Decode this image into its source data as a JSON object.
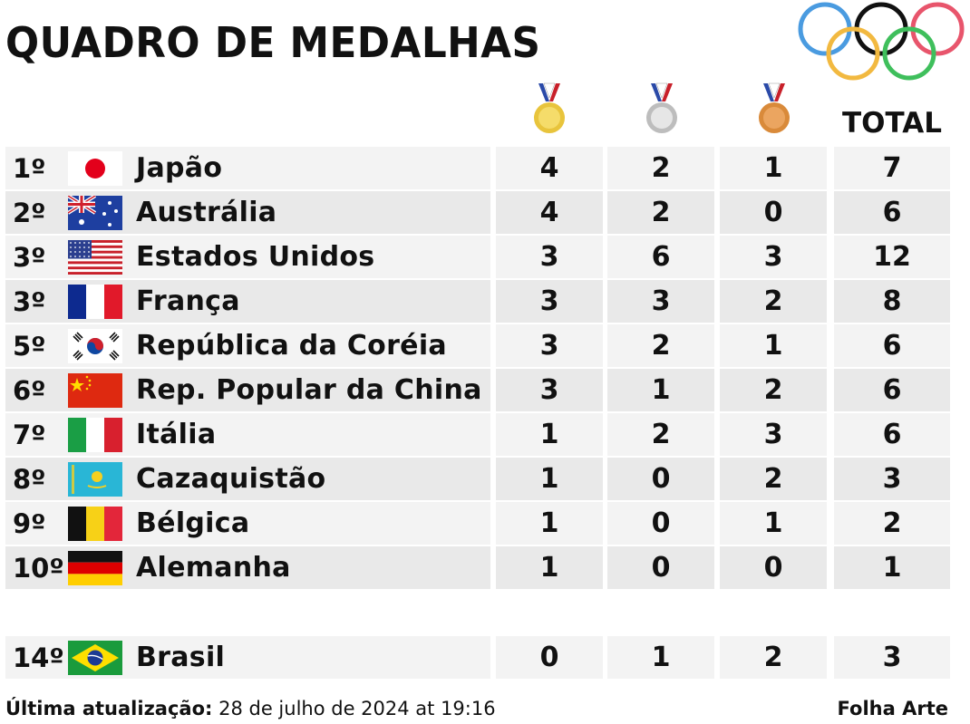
{
  "title": "QUADRO DE MEDALHAS",
  "columns": {
    "total": "TOTAL"
  },
  "colors": {
    "gold": "#e8c43c",
    "silver": "#c9c9c9",
    "bronze": "#d98a3a",
    "ring_blue": "#4a9be0",
    "ring_yellow": "#f2b940",
    "ring_black": "#111111",
    "ring_green": "#3fbf5c",
    "ring_red": "#e8556c"
  },
  "rows": [
    {
      "rank": "1º",
      "country": "Japão",
      "flag": "japan-flag",
      "gold": "4",
      "silver": "2",
      "bronze": "1",
      "total": "7"
    },
    {
      "rank": "2º",
      "country": "Austrália",
      "flag": "australia-flag",
      "gold": "4",
      "silver": "2",
      "bronze": "0",
      "total": "6"
    },
    {
      "rank": "3º",
      "country": "Estados Unidos",
      "flag": "usa-flag",
      "gold": "3",
      "silver": "6",
      "bronze": "3",
      "total": "12"
    },
    {
      "rank": "3º",
      "country": "França",
      "flag": "france-flag",
      "gold": "3",
      "silver": "3",
      "bronze": "2",
      "total": "8"
    },
    {
      "rank": "5º",
      "country": "República da Coréia",
      "flag": "korea-flag",
      "gold": "3",
      "silver": "2",
      "bronze": "1",
      "total": "6"
    },
    {
      "rank": "6º",
      "country": "Rep. Popular da China",
      "flag": "china-flag",
      "gold": "3",
      "silver": "1",
      "bronze": "2",
      "total": "6"
    },
    {
      "rank": "7º",
      "country": "Itália",
      "flag": "italy-flag",
      "gold": "1",
      "silver": "2",
      "bronze": "3",
      "total": "6"
    },
    {
      "rank": "8º",
      "country": "Cazaquistão",
      "flag": "kazakhstan-flag",
      "gold": "1",
      "silver": "0",
      "bronze": "2",
      "total": "3"
    },
    {
      "rank": "9º",
      "country": "Bélgica",
      "flag": "belgium-flag",
      "gold": "1",
      "silver": "0",
      "bronze": "1",
      "total": "2"
    },
    {
      "rank": "10º",
      "country": "Alemanha",
      "flag": "germany-flag",
      "gold": "1",
      "silver": "0",
      "bronze": "0",
      "total": "1"
    }
  ],
  "brazil": {
    "rank": "14º",
    "country": "Brasil",
    "flag": "brazil-flag",
    "gold": "0",
    "silver": "1",
    "bronze": "2",
    "total": "3"
  },
  "footer": {
    "update_label": "Última atualização:",
    "update_value": "28 de julho de 2024 at 19:16",
    "credit": "Folha Arte"
  }
}
